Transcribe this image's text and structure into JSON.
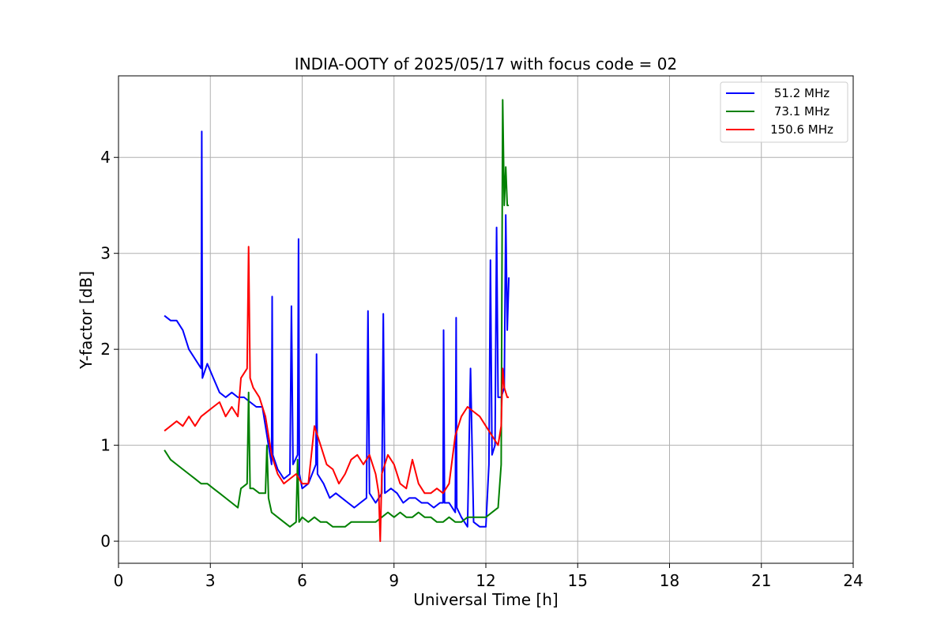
{
  "chart_data": {
    "type": "line",
    "title": "INDIA-OOTY of 2025/05/17 with focus code = 02",
    "xlabel": "Universal Time [h]",
    "ylabel": "Y-factor [dB]",
    "xlim": [
      0,
      24
    ],
    "ylim": [
      -0.23,
      4.85
    ],
    "xticks": [
      0,
      3,
      6,
      9,
      12,
      15,
      18,
      21,
      24
    ],
    "xtick_labels": [
      "0",
      "3",
      "6",
      "9",
      "12",
      "15",
      "18",
      "21",
      "24"
    ],
    "yticks": [
      0,
      1,
      2,
      3,
      4
    ],
    "ytick_labels": [
      "0",
      "1",
      "2",
      "3",
      "4"
    ],
    "grid": true,
    "legend_position": "top-right",
    "series": [
      {
        "name": "51.2 MHz",
        "color": "#0000ff",
        "x": [
          1.5,
          1.7,
          1.9,
          2.1,
          2.3,
          2.5,
          2.7,
          2.72,
          2.74,
          2.9,
          3.1,
          3.3,
          3.5,
          3.7,
          3.9,
          4.1,
          4.3,
          4.5,
          4.7,
          4.9,
          5.0,
          5.02,
          5.04,
          5.2,
          5.4,
          5.6,
          5.65,
          5.7,
          5.85,
          5.88,
          5.91,
          6.0,
          6.2,
          6.45,
          6.47,
          6.5,
          6.7,
          6.9,
          7.1,
          7.3,
          7.5,
          7.7,
          7.9,
          8.1,
          8.15,
          8.2,
          8.4,
          8.6,
          8.65,
          8.7,
          8.9,
          9.1,
          9.3,
          9.5,
          9.7,
          9.9,
          10.1,
          10.3,
          10.5,
          10.6,
          10.62,
          10.65,
          10.8,
          11.0,
          11.03,
          11.05,
          11.2,
          11.4,
          11.5,
          11.6,
          11.8,
          12.0,
          12.1,
          12.15,
          12.2,
          12.3,
          12.35,
          12.4,
          12.5,
          12.6,
          12.65,
          12.7,
          12.75
        ],
        "y": [
          2.35,
          2.3,
          2.3,
          2.2,
          2.0,
          1.9,
          1.8,
          4.27,
          1.7,
          1.85,
          1.7,
          1.55,
          1.5,
          1.55,
          1.5,
          1.5,
          1.45,
          1.4,
          1.4,
          1.0,
          0.8,
          2.55,
          0.9,
          0.75,
          0.65,
          0.7,
          2.45,
          0.8,
          0.9,
          3.15,
          0.7,
          0.55,
          0.6,
          0.8,
          1.95,
          0.7,
          0.6,
          0.45,
          0.5,
          0.45,
          0.4,
          0.35,
          0.4,
          0.45,
          2.4,
          0.5,
          0.4,
          0.5,
          2.37,
          0.5,
          0.55,
          0.5,
          0.4,
          0.45,
          0.45,
          0.4,
          0.4,
          0.35,
          0.4,
          0.4,
          2.2,
          0.4,
          0.4,
          0.3,
          2.33,
          0.35,
          0.25,
          0.15,
          1.8,
          0.2,
          0.15,
          0.15,
          0.8,
          2.93,
          0.9,
          1.0,
          3.27,
          1.5,
          1.5,
          1.6,
          3.4,
          2.2,
          2.75
        ]
      },
      {
        "name": "73.1 MHz",
        "color": "#008000",
        "x": [
          1.5,
          1.7,
          1.9,
          2.1,
          2.3,
          2.5,
          2.7,
          2.9,
          3.1,
          3.3,
          3.5,
          3.7,
          3.9,
          4.0,
          4.2,
          4.25,
          4.3,
          4.4,
          4.6,
          4.8,
          4.85,
          4.9,
          5.0,
          5.2,
          5.4,
          5.6,
          5.8,
          5.85,
          5.9,
          6.0,
          6.2,
          6.4,
          6.6,
          6.8,
          7.0,
          7.2,
          7.4,
          7.6,
          7.8,
          8.0,
          8.2,
          8.4,
          8.6,
          8.8,
          9.0,
          9.2,
          9.4,
          9.6,
          9.8,
          10.0,
          10.2,
          10.4,
          10.6,
          10.8,
          11.0,
          11.2,
          11.4,
          11.6,
          11.8,
          12.0,
          12.2,
          12.4,
          12.5,
          12.55,
          12.6,
          12.65,
          12.7,
          12.75
        ],
        "y": [
          0.95,
          0.85,
          0.8,
          0.75,
          0.7,
          0.65,
          0.6,
          0.6,
          0.55,
          0.5,
          0.45,
          0.4,
          0.35,
          0.55,
          0.6,
          1.55,
          0.55,
          0.55,
          0.5,
          0.5,
          1.0,
          0.45,
          0.3,
          0.25,
          0.2,
          0.15,
          0.2,
          0.85,
          0.2,
          0.25,
          0.2,
          0.25,
          0.2,
          0.2,
          0.15,
          0.15,
          0.15,
          0.2,
          0.2,
          0.2,
          0.2,
          0.2,
          0.25,
          0.3,
          0.25,
          0.3,
          0.25,
          0.25,
          0.3,
          0.25,
          0.25,
          0.2,
          0.2,
          0.25,
          0.2,
          0.2,
          0.25,
          0.25,
          0.25,
          0.25,
          0.3,
          0.35,
          0.8,
          4.6,
          3.5,
          3.9,
          3.5,
          3.5
        ]
      },
      {
        "name": "150.6 MHz",
        "color": "#ff0000",
        "x": [
          1.5,
          1.7,
          1.9,
          2.1,
          2.3,
          2.5,
          2.7,
          2.9,
          3.1,
          3.3,
          3.5,
          3.7,
          3.9,
          4.0,
          4.2,
          4.25,
          4.3,
          4.4,
          4.6,
          4.8,
          5.0,
          5.2,
          5.4,
          5.6,
          5.8,
          6.0,
          6.2,
          6.4,
          6.6,
          6.8,
          7.0,
          7.2,
          7.4,
          7.6,
          7.8,
          8.0,
          8.2,
          8.4,
          8.5,
          8.55,
          8.6,
          8.8,
          9.0,
          9.2,
          9.4,
          9.6,
          9.8,
          10.0,
          10.2,
          10.4,
          10.6,
          10.8,
          11.0,
          11.2,
          11.4,
          11.6,
          11.8,
          12.0,
          12.2,
          12.4,
          12.5,
          12.55,
          12.6,
          12.7,
          12.75
        ],
        "y": [
          1.15,
          1.2,
          1.25,
          1.2,
          1.3,
          1.2,
          1.3,
          1.35,
          1.4,
          1.45,
          1.3,
          1.4,
          1.3,
          1.7,
          1.8,
          3.07,
          1.7,
          1.6,
          1.5,
          1.3,
          0.9,
          0.7,
          0.6,
          0.65,
          0.7,
          0.6,
          0.6,
          1.2,
          1.0,
          0.8,
          0.75,
          0.6,
          0.7,
          0.85,
          0.9,
          0.8,
          0.9,
          0.7,
          0.5,
          0.0,
          0.7,
          0.9,
          0.8,
          0.6,
          0.55,
          0.85,
          0.6,
          0.5,
          0.5,
          0.55,
          0.5,
          0.6,
          1.1,
          1.3,
          1.4,
          1.35,
          1.3,
          1.2,
          1.1,
          1.0,
          1.2,
          1.8,
          1.6,
          1.5,
          1.5
        ]
      }
    ]
  }
}
